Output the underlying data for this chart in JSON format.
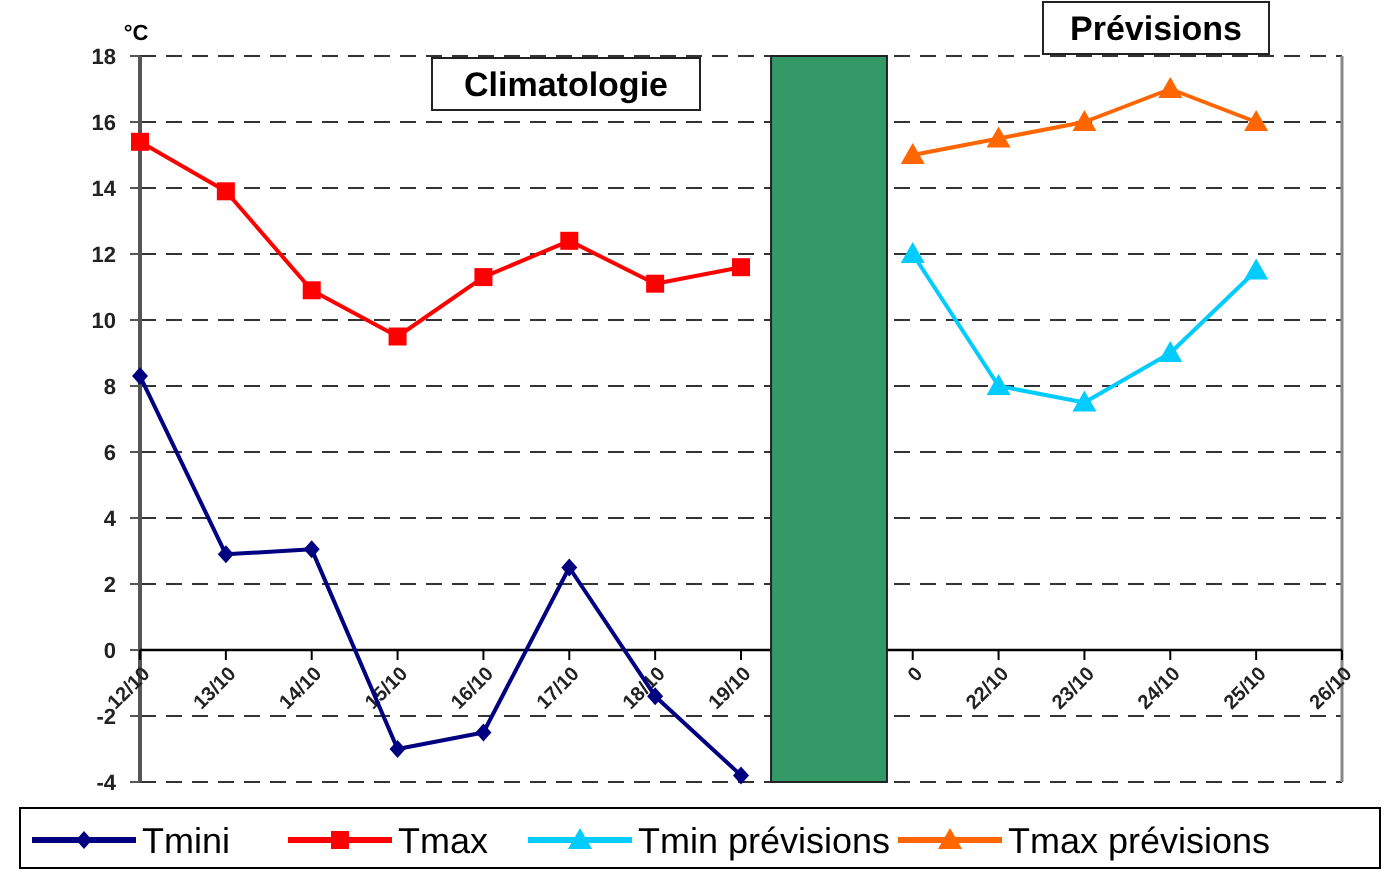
{
  "chart_data": {
    "type": "line",
    "ylabel": "°C",
    "categories": [
      "12/10",
      "13/10",
      "14/10",
      "15/10",
      "16/10",
      "17/10",
      "18/10",
      "19/10",
      null,
      "0",
      "22/10",
      "23/10",
      "24/10",
      "25/10",
      "26/10"
    ],
    "ylim": [
      -4,
      18
    ],
    "yticks": [
      -4,
      -2,
      0,
      2,
      4,
      6,
      8,
      10,
      12,
      14,
      16,
      18
    ],
    "grid": "y",
    "legend": "bottom",
    "line_style": "solid",
    "annotations": [
      "Climatologie",
      "Prévisions"
    ],
    "series": [
      {
        "name": "Tmini",
        "color": "#000080",
        "marker": "diamond",
        "values": [
          8.3,
          2.9,
          3.05,
          -3.0,
          -2.5,
          2.5,
          -1.4,
          -3.8,
          null,
          null,
          null,
          null,
          null,
          null,
          null
        ]
      },
      {
        "name": "Tmax",
        "color": "#ff0000",
        "marker": "square",
        "values": [
          15.4,
          13.9,
          10.9,
          9.5,
          11.3,
          12.4,
          11.1,
          11.6,
          null,
          null,
          null,
          null,
          null,
          null,
          null
        ]
      },
      {
        "name": "Tmin prévisions",
        "color": "#00ccff",
        "marker": "triangle",
        "values": [
          null,
          null,
          null,
          null,
          null,
          null,
          null,
          null,
          null,
          12,
          8,
          7.5,
          9,
          11.5,
          null
        ]
      },
      {
        "name": "Tmax prévisions",
        "color": "#ff6600",
        "marker": "triangle",
        "values": [
          null,
          null,
          null,
          null,
          null,
          null,
          null,
          null,
          null,
          15,
          15.5,
          16,
          17,
          16,
          null
        ]
      }
    ]
  }
}
